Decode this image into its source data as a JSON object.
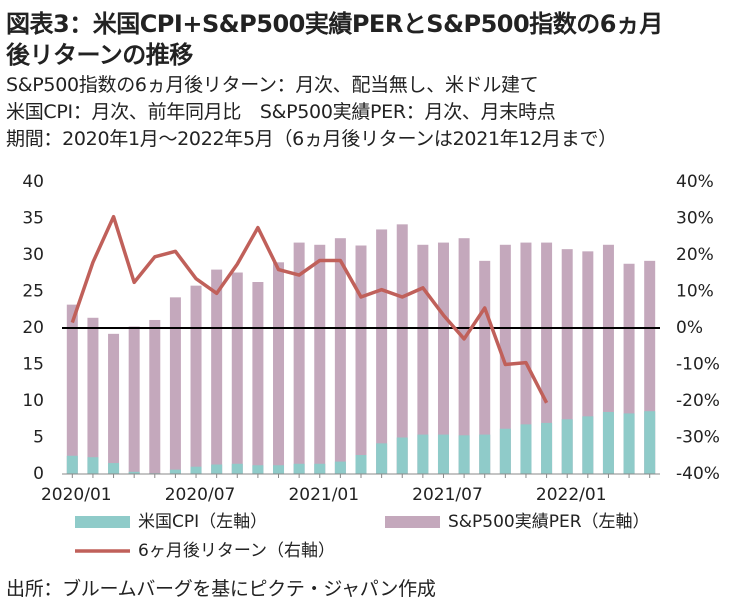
{
  "chart_data": {
    "type": "bar",
    "title": [
      "図表3：米国CPI+S&P500実績PERとS&P500指数の6ヵ月",
      "後リターンの推移"
    ],
    "subtitle": [
      "S&P500指数の6ヵ月後リターン：月次、配当無し、米ドル建て",
      "米国CPI：月次、前年同月比　S&P500実績PER：月次、月末時点",
      "期間：2020年1月～2022年5月（6ヵ月後リターンは2021年12月まで）"
    ],
    "source": "出所：ブルームバーグを基にピクテ・ジャパン作成",
    "categories": [
      "2020/01",
      null,
      null,
      null,
      null,
      null,
      "2020/07",
      null,
      null,
      null,
      null,
      null,
      "2021/01",
      null,
      null,
      null,
      null,
      null,
      "2021/07",
      null,
      null,
      null,
      null,
      null,
      "2022/01",
      null,
      null,
      null,
      null
    ],
    "series": [
      {
        "name": "米国CPI（左軸）",
        "color": "#8fcbc9",
        "values": [
          2.5,
          2.3,
          1.5,
          0.3,
          0.1,
          0.6,
          1.0,
          1.3,
          1.4,
          1.2,
          1.2,
          1.4,
          1.4,
          1.7,
          2.6,
          4.2,
          5.0,
          5.4,
          5.4,
          5.3,
          5.4,
          6.2,
          6.8,
          7.0,
          7.5,
          7.9,
          8.5,
          8.3,
          8.6
        ]
      },
      {
        "name": "S&P500実績PER（左軸）",
        "color": "#c4a8bc",
        "values": [
          23.2,
          21.4,
          19.2,
          20.2,
          21.1,
          24.2,
          25.8,
          28.0,
          27.6,
          26.3,
          29.0,
          31.7,
          31.4,
          32.3,
          31.3,
          33.5,
          34.2,
          31.4,
          31.7,
          32.3,
          29.2,
          31.4,
          31.7,
          31.7,
          30.8,
          30.5,
          31.4,
          28.8,
          29.2
        ]
      },
      {
        "name": "6ヶ月後リターン（右軸）",
        "color": "#c0605a",
        "axis": "y2",
        "values": [
          1.5,
          18,
          30.5,
          12.5,
          19.5,
          21,
          13.5,
          9.5,
          17.5,
          27.5,
          16,
          14.5,
          18.5,
          18.5,
          8.5,
          10.5,
          8.5,
          11,
          3.5,
          -3,
          5.5,
          -10,
          -9.5,
          -20.5,
          null,
          null,
          null,
          null,
          null
        ]
      }
    ],
    "ylim": [
      0,
      40
    ],
    "yticks": [
      0,
      5,
      10,
      15,
      20,
      25,
      30,
      35,
      40
    ],
    "y2lim": [
      -40,
      40
    ],
    "y2ticks": [
      {
        "value": -40,
        "label": "-40%"
      },
      {
        "value": -30,
        "label": "-30%"
      },
      {
        "value": -20,
        "label": "-20%"
      },
      {
        "value": -10,
        "label": "-10%"
      },
      {
        "value": 0,
        "label": "0%"
      },
      {
        "value": 10,
        "label": "10%"
      },
      {
        "value": 20,
        "label": "20%"
      },
      {
        "value": 30,
        "label": "30%"
      },
      {
        "value": 40,
        "label": "40%"
      }
    ]
  }
}
